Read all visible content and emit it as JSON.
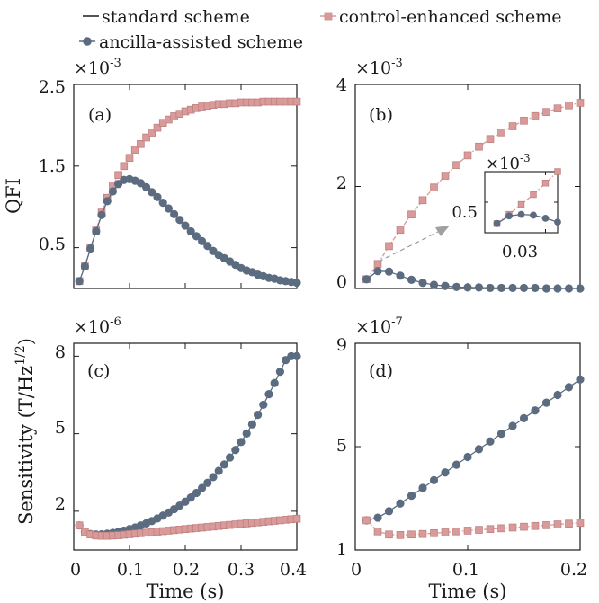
{
  "legend": {
    "items": [
      {
        "label": "standard scheme",
        "marker": "none",
        "color": "#1a1a1a"
      },
      {
        "label": "control-enhanced scheme",
        "marker": "square",
        "color": "#d99a9a"
      },
      {
        "label": "ancilla-assisted scheme",
        "marker": "circle",
        "color": "#5b6b80"
      }
    ],
    "placement": "top"
  },
  "colors": {
    "ancilla": "#5b6b80",
    "control": "#d99a9a",
    "axis": "#1a1a1a"
  },
  "chart_data": [
    {
      "panel": "(a)",
      "type": "line",
      "multiplier": "×10",
      "exponent": "-3",
      "ylabel": "QFI",
      "xlabel": "",
      "xlim": [
        0,
        0.4
      ],
      "ylim": [
        0,
        2.5
      ],
      "xticks": [
        0,
        0.1,
        0.2,
        0.3,
        0.4
      ],
      "xtick_labels": [],
      "yticks": [
        0.5,
        1.5,
        2.5
      ],
      "ytick_labels": [
        "0.5",
        "1.5",
        "2.5"
      ],
      "x": [
        0.01,
        0.02,
        0.03,
        0.04,
        0.05,
        0.06,
        0.07,
        0.08,
        0.09,
        0.1,
        0.11,
        0.12,
        0.13,
        0.14,
        0.15,
        0.16,
        0.17,
        0.18,
        0.19,
        0.2,
        0.21,
        0.22,
        0.23,
        0.24,
        0.25,
        0.26,
        0.27,
        0.28,
        0.29,
        0.3,
        0.31,
        0.32,
        0.33,
        0.34,
        0.35,
        0.36,
        0.37,
        0.38,
        0.39,
        0.4
      ],
      "series": [
        {
          "name": "control-enhanced scheme",
          "marker": "square",
          "values": [
            0.09,
            0.28,
            0.5,
            0.71,
            0.93,
            1.11,
            1.26,
            1.39,
            1.5,
            1.6,
            1.7,
            1.77,
            1.85,
            1.91,
            1.97,
            2.03,
            2.07,
            2.11,
            2.14,
            2.17,
            2.19,
            2.21,
            2.23,
            2.24,
            2.25,
            2.26,
            2.26,
            2.27,
            2.27,
            2.28,
            2.28,
            2.28,
            2.28,
            2.29,
            2.29,
            2.29,
            2.29,
            2.29,
            2.29,
            2.29
          ]
        },
        {
          "name": "ancilla-assisted scheme",
          "marker": "circle",
          "values": [
            0.09,
            0.27,
            0.49,
            0.7,
            0.9,
            1.07,
            1.19,
            1.28,
            1.33,
            1.34,
            1.32,
            1.29,
            1.24,
            1.18,
            1.12,
            1.05,
            0.98,
            0.91,
            0.84,
            0.77,
            0.7,
            0.64,
            0.58,
            0.52,
            0.46,
            0.41,
            0.37,
            0.33,
            0.29,
            0.25,
            0.22,
            0.2,
            0.17,
            0.15,
            0.13,
            0.12,
            0.1,
            0.09,
            0.08,
            0.07
          ]
        }
      ]
    },
    {
      "panel": "(b)",
      "type": "line",
      "multiplier": "×10",
      "exponent": "-3",
      "ylabel": "",
      "xlabel": "",
      "xlim": [
        0,
        0.2
      ],
      "ylim": [
        0,
        4
      ],
      "xticks": [
        0,
        0.1,
        0.2
      ],
      "xtick_labels": [],
      "yticks": [
        0,
        2,
        4
      ],
      "ytick_labels": [
        "0",
        "2",
        "4"
      ],
      "x": [
        0.01,
        0.02,
        0.03,
        0.04,
        0.05,
        0.06,
        0.07,
        0.08,
        0.09,
        0.1,
        0.11,
        0.12,
        0.13,
        0.14,
        0.15,
        0.16,
        0.17,
        0.18,
        0.19,
        0.2
      ],
      "series": [
        {
          "name": "control-enhanced scheme",
          "marker": "square",
          "values": [
            0.18,
            0.48,
            0.83,
            1.15,
            1.45,
            1.73,
            1.98,
            2.21,
            2.42,
            2.61,
            2.78,
            2.93,
            3.06,
            3.18,
            3.29,
            3.38,
            3.46,
            3.53,
            3.59,
            3.64
          ]
        },
        {
          "name": "ancilla-assisted scheme",
          "marker": "circle",
          "values": [
            0.18,
            0.34,
            0.33,
            0.25,
            0.17,
            0.11,
            0.07,
            0.05,
            0.03,
            0.02,
            0.02,
            0.01,
            0.01,
            0.01,
            0.01,
            0.01,
            0.0,
            0.0,
            0.0,
            0.0
          ]
        }
      ],
      "inset": {
        "multiplier": "×10",
        "exponent": "-3",
        "xlim": [
          0.005,
          0.035
        ],
        "ylim": [
          0.1,
          0.9
        ],
        "ytick_labels": [
          "0.5"
        ],
        "xtick_labels": [
          "0.03"
        ],
        "x": [
          0.01,
          0.015,
          0.02,
          0.025,
          0.03,
          0.035
        ],
        "series": [
          {
            "name": "control-enhanced scheme",
            "marker": "square",
            "values": [
              0.22,
              0.34,
              0.47,
              0.6,
              0.75,
              0.9
            ]
          },
          {
            "name": "ancilla-assisted scheme",
            "marker": "circle",
            "values": [
              0.22,
              0.32,
              0.34,
              0.33,
              0.29,
              0.24
            ]
          }
        ]
      }
    },
    {
      "panel": "(c)",
      "type": "line",
      "multiplier": "×10",
      "exponent": "-6",
      "ylabel": "Sensitivity (T/Hz",
      "ylabel_sup": "1/2",
      "ylabel_end": ")",
      "xlabel": "Time (s)",
      "xlim": [
        0,
        0.4
      ],
      "ylim": [
        0.5,
        8.5
      ],
      "xticks": [
        0,
        0.1,
        0.2,
        0.3,
        0.4
      ],
      "xtick_labels": [
        "0",
        "0.1",
        "0.2",
        "0.3",
        "0.4"
      ],
      "yticks": [
        2,
        5,
        8
      ],
      "ytick_labels": [
        "2",
        "5",
        "8"
      ],
      "x": [
        0.01,
        0.02,
        0.03,
        0.04,
        0.05,
        0.06,
        0.07,
        0.08,
        0.09,
        0.1,
        0.11,
        0.12,
        0.13,
        0.14,
        0.15,
        0.16,
        0.17,
        0.18,
        0.19,
        0.2,
        0.21,
        0.22,
        0.23,
        0.24,
        0.25,
        0.26,
        0.27,
        0.28,
        0.29,
        0.3,
        0.31,
        0.32,
        0.33,
        0.34,
        0.35,
        0.36,
        0.37,
        0.38,
        0.39,
        0.4
      ],
      "series": [
        {
          "name": "ancilla-assisted scheme",
          "marker": "circle",
          "values": [
            1.45,
            1.2,
            1.12,
            1.1,
            1.11,
            1.13,
            1.16,
            1.2,
            1.25,
            1.31,
            1.37,
            1.45,
            1.53,
            1.62,
            1.72,
            1.83,
            1.95,
            2.08,
            2.22,
            2.37,
            2.53,
            2.71,
            2.9,
            3.1,
            3.32,
            3.56,
            3.81,
            4.08,
            4.37,
            4.68,
            5.01,
            5.36,
            5.73,
            6.12,
            6.53,
            6.96,
            7.4,
            7.85,
            8.0,
            8.0
          ]
        },
        {
          "name": "control-enhanced scheme",
          "marker": "square",
          "values": [
            1.45,
            1.2,
            1.1,
            1.06,
            1.05,
            1.05,
            1.06,
            1.07,
            1.09,
            1.11,
            1.13,
            1.15,
            1.17,
            1.19,
            1.21,
            1.23,
            1.25,
            1.27,
            1.29,
            1.31,
            1.33,
            1.35,
            1.37,
            1.39,
            1.41,
            1.43,
            1.45,
            1.47,
            1.49,
            1.51,
            1.53,
            1.55,
            1.57,
            1.59,
            1.61,
            1.63,
            1.65,
            1.67,
            1.69,
            1.71
          ]
        }
      ]
    },
    {
      "panel": "(d)",
      "type": "line",
      "multiplier": "×10",
      "exponent": "-7",
      "ylabel": "",
      "xlabel": "Time (s)",
      "xlim": [
        0,
        0.2
      ],
      "ylim": [
        1,
        9
      ],
      "xticks": [
        0,
        0.1,
        0.2
      ],
      "xtick_labels": [
        "0",
        "0.1",
        "0.2"
      ],
      "yticks": [
        1,
        5,
        9
      ],
      "ytick_labels": [
        "1",
        "5",
        "9"
      ],
      "x": [
        0.01,
        0.02,
        0.03,
        0.04,
        0.05,
        0.06,
        0.07,
        0.08,
        0.09,
        0.1,
        0.11,
        0.12,
        0.13,
        0.14,
        0.15,
        0.16,
        0.17,
        0.18,
        0.19,
        0.2
      ],
      "series": [
        {
          "name": "ancilla-assisted scheme",
          "marker": "circle",
          "values": [
            2.15,
            2.25,
            2.5,
            2.8,
            3.1,
            3.4,
            3.7,
            4.0,
            4.3,
            4.6,
            4.9,
            5.2,
            5.5,
            5.8,
            6.1,
            6.4,
            6.7,
            7.0,
            7.3,
            7.6
          ]
        },
        {
          "name": "control-enhanced scheme",
          "marker": "square",
          "values": [
            2.15,
            1.72,
            1.6,
            1.58,
            1.6,
            1.62,
            1.65,
            1.68,
            1.72,
            1.75,
            1.78,
            1.81,
            1.84,
            1.87,
            1.9,
            1.93,
            1.96,
            1.99,
            2.02,
            2.05
          ]
        }
      ]
    }
  ]
}
